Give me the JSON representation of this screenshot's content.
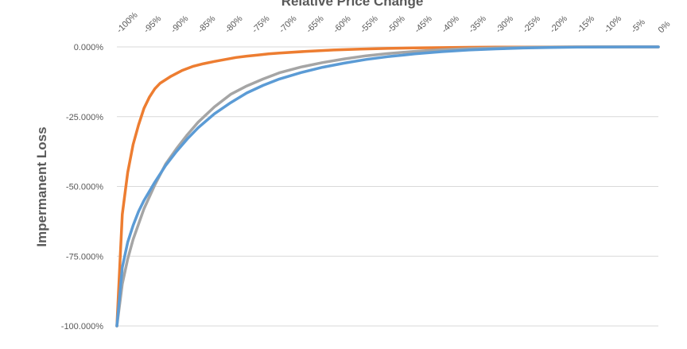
{
  "chart_data": {
    "type": "line",
    "title": "Relative Price Change",
    "xlabel": "Relative Price Change",
    "ylabel": "Impermanent Loss",
    "x_tick_labels": [
      "-100%",
      "-95%",
      "-90%",
      "-85%",
      "-80%",
      "-75%",
      "-70%",
      "-65%",
      "-60%",
      "-55%",
      "-50%",
      "-45%",
      "-40%",
      "-35%",
      "-30%",
      "-25%",
      "-20%",
      "-15%",
      "-10%",
      "-5%",
      "0%"
    ],
    "y_tick_labels": [
      "0.000%",
      "-25.000%",
      "-50.000%",
      "-75.000%",
      "-100.000%"
    ],
    "xlim": [
      -100,
      0
    ],
    "ylim": [
      -100,
      0
    ],
    "y_ticks": [
      0,
      -25,
      -50,
      -75,
      -100
    ],
    "grid": true,
    "series": [
      {
        "color": "#ed7d31",
        "x": [
          -100,
          -99,
          -98,
          -97,
          -96,
          -95,
          -94,
          -93,
          -92,
          -90,
          -88,
          -86,
          -84,
          -82,
          -80,
          -78,
          -76,
          -74,
          -72,
          -70,
          -65,
          -60,
          -55,
          -50,
          -45,
          -40,
          -35,
          -30,
          -25,
          -20,
          -15,
          -10,
          -5,
          0
        ],
        "y": [
          -100,
          -60,
          -45,
          -35,
          -28,
          -22,
          -18,
          -15,
          -13,
          -10.5,
          -8.5,
          -7,
          -6,
          -5.2,
          -4.5,
          -3.8,
          -3.3,
          -2.9,
          -2.5,
          -2.2,
          -1.6,
          -1.1,
          -0.8,
          -0.55,
          -0.38,
          -0.25,
          -0.15,
          -0.09,
          -0.05,
          -0.02,
          -0.01,
          0,
          0,
          0
        ]
      },
      {
        "color": "#a5a5a5",
        "x": [
          -100,
          -99,
          -98,
          -97,
          -95,
          -93,
          -91,
          -89,
          -87,
          -85,
          -82,
          -79,
          -76,
          -73,
          -70,
          -66,
          -62,
          -58,
          -54,
          -50,
          -45,
          -40,
          -35,
          -30,
          -25,
          -20,
          -15,
          -10,
          -5,
          0
        ],
        "y": [
          -100,
          -85,
          -76,
          -69,
          -58,
          -49.5,
          -42,
          -36.5,
          -31.5,
          -27,
          -21.5,
          -17,
          -14,
          -11.5,
          -9.3,
          -7.2,
          -5.6,
          -4.3,
          -3.2,
          -2.4,
          -1.6,
          -1.0,
          -0.6,
          -0.35,
          -0.18,
          -0.08,
          -0.03,
          -0.01,
          0,
          0
        ]
      },
      {
        "color": "#5b9bd5",
        "x": [
          -100,
          -99,
          -98,
          -97,
          -96,
          -95,
          -93,
          -91,
          -89,
          -87,
          -85,
          -82,
          -79,
          -76,
          -73,
          -70,
          -66,
          -62,
          -58,
          -54,
          -50,
          -45,
          -40,
          -35,
          -30,
          -25,
          -20,
          -15,
          -10,
          -5,
          0
        ],
        "y": [
          -100,
          -79,
          -70,
          -64,
          -59,
          -55,
          -48.5,
          -42.5,
          -37.5,
          -33,
          -29,
          -24,
          -20,
          -16.5,
          -13.8,
          -11.5,
          -9.2,
          -7.3,
          -5.8,
          -4.5,
          -3.5,
          -2.5,
          -1.7,
          -1.1,
          -0.7,
          -0.4,
          -0.2,
          -0.08,
          -0.02,
          0,
          0
        ]
      }
    ]
  }
}
